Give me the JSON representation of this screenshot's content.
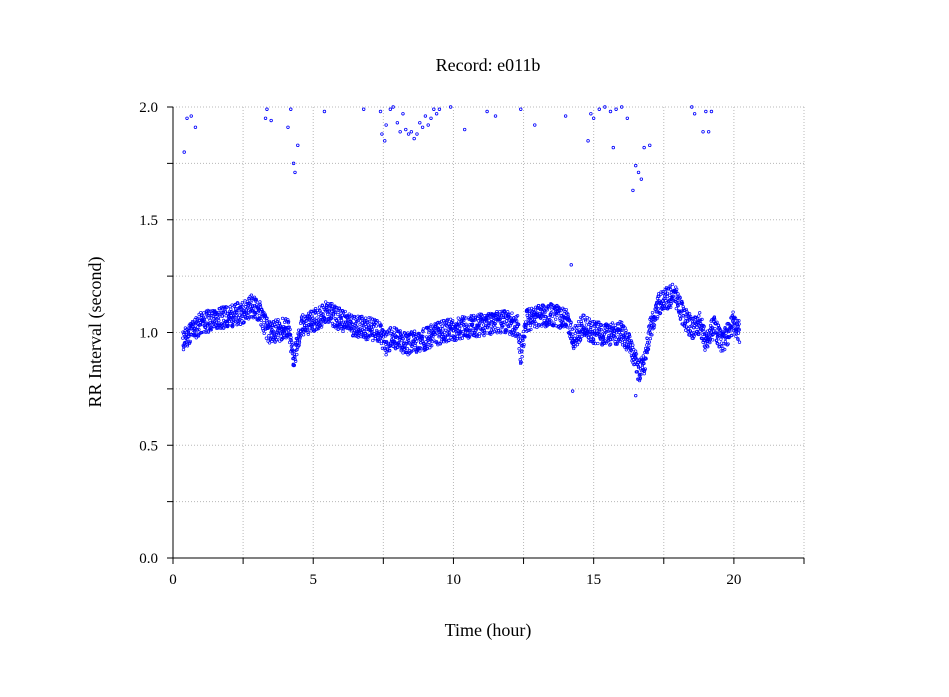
{
  "chart_data": {
    "type": "scatter",
    "title": "Record:  e011b",
    "xlabel": "Time (hour)",
    "ylabel": "RR Interval (second)",
    "xlim": [
      0,
      22.5
    ],
    "ylim": [
      0,
      2.0
    ],
    "xticks": [
      0,
      5,
      10,
      15,
      20
    ],
    "xtick_labels": [
      "0",
      "5",
      "10",
      "15",
      "20"
    ],
    "xminor": [
      2.5,
      7.5,
      12.5,
      17.5,
      22.5
    ],
    "yticks": [
      0.0,
      0.5,
      1.0,
      1.5,
      2.0
    ],
    "ytick_labels": [
      "0.0",
      "0.5",
      "1.0",
      "1.5",
      "2.0"
    ],
    "yminor": [
      0.25,
      0.75,
      1.25,
      1.75
    ],
    "grid": true,
    "marker_color": "#0000ff",
    "baseline_trend": {
      "x": [
        0.35,
        0.6,
        1.0,
        1.5,
        2.0,
        2.5,
        2.8,
        3.1,
        3.4,
        3.8,
        4.1,
        4.3,
        4.6,
        5.0,
        5.5,
        5.8,
        6.2,
        6.8,
        7.3,
        7.6,
        7.8,
        8.3,
        8.8,
        9.3,
        9.8,
        10.3,
        10.8,
        11.3,
        11.8,
        12.3,
        12.4,
        12.6,
        13.0,
        13.5,
        14.0,
        14.3,
        14.6,
        15.0,
        15.5,
        16.0,
        16.3,
        16.6,
        16.8,
        17.0,
        17.3,
        17.6,
        17.9,
        18.2,
        18.5,
        18.8,
        19.0,
        19.3,
        19.6,
        20.0,
        20.2
      ],
      "y": [
        0.96,
        1.0,
        1.04,
        1.06,
        1.07,
        1.09,
        1.12,
        1.09,
        1.0,
        1.01,
        1.02,
        0.88,
        1.03,
        1.05,
        1.09,
        1.07,
        1.04,
        1.02,
        1.01,
        0.95,
        0.98,
        0.95,
        0.96,
        0.99,
        1.01,
        1.02,
        1.03,
        1.04,
        1.05,
        1.03,
        0.9,
        1.05,
        1.07,
        1.08,
        1.06,
        0.97,
        1.03,
        1.0,
        0.99,
        1.0,
        0.94,
        0.83,
        0.85,
        1.01,
        1.12,
        1.15,
        1.17,
        1.07,
        1.02,
        1.04,
        0.96,
        1.03,
        0.95,
        1.05,
        1.0
      ],
      "spread": 0.05
    },
    "outliers": [
      {
        "x": 0.4,
        "y": 1.8
      },
      {
        "x": 0.5,
        "y": 1.95
      },
      {
        "x": 0.65,
        "y": 1.96
      },
      {
        "x": 0.8,
        "y": 1.91
      },
      {
        "x": 3.3,
        "y": 1.95
      },
      {
        "x": 3.35,
        "y": 1.99
      },
      {
        "x": 3.5,
        "y": 1.94
      },
      {
        "x": 4.1,
        "y": 1.91
      },
      {
        "x": 4.2,
        "y": 1.99
      },
      {
        "x": 4.3,
        "y": 1.75
      },
      {
        "x": 4.35,
        "y": 1.71
      },
      {
        "x": 4.45,
        "y": 1.83
      },
      {
        "x": 5.4,
        "y": 1.98
      },
      {
        "x": 6.8,
        "y": 1.99
      },
      {
        "x": 7.4,
        "y": 1.98
      },
      {
        "x": 7.45,
        "y": 1.88
      },
      {
        "x": 7.55,
        "y": 1.85
      },
      {
        "x": 7.6,
        "y": 1.92
      },
      {
        "x": 7.75,
        "y": 1.99
      },
      {
        "x": 7.85,
        "y": 2.0
      },
      {
        "x": 8.0,
        "y": 1.93
      },
      {
        "x": 8.1,
        "y": 1.89
      },
      {
        "x": 8.2,
        "y": 1.97
      },
      {
        "x": 8.3,
        "y": 1.9
      },
      {
        "x": 8.4,
        "y": 1.88
      },
      {
        "x": 8.5,
        "y": 1.89
      },
      {
        "x": 8.6,
        "y": 1.86
      },
      {
        "x": 8.7,
        "y": 1.88
      },
      {
        "x": 8.8,
        "y": 1.93
      },
      {
        "x": 8.9,
        "y": 1.91
      },
      {
        "x": 9.0,
        "y": 1.96
      },
      {
        "x": 9.1,
        "y": 1.92
      },
      {
        "x": 9.2,
        "y": 1.95
      },
      {
        "x": 9.3,
        "y": 1.99
      },
      {
        "x": 9.4,
        "y": 1.97
      },
      {
        "x": 9.5,
        "y": 1.99
      },
      {
        "x": 9.9,
        "y": 2.0
      },
      {
        "x": 10.4,
        "y": 1.9
      },
      {
        "x": 11.2,
        "y": 1.98
      },
      {
        "x": 11.5,
        "y": 1.96
      },
      {
        "x": 12.4,
        "y": 1.99
      },
      {
        "x": 12.9,
        "y": 1.92
      },
      {
        "x": 14.0,
        "y": 1.96
      },
      {
        "x": 14.2,
        "y": 1.3
      },
      {
        "x": 14.25,
        "y": 0.74
      },
      {
        "x": 14.8,
        "y": 1.85
      },
      {
        "x": 14.9,
        "y": 1.97
      },
      {
        "x": 15.0,
        "y": 1.95
      },
      {
        "x": 15.2,
        "y": 1.99
      },
      {
        "x": 15.4,
        "y": 2.0
      },
      {
        "x": 15.6,
        "y": 1.98
      },
      {
        "x": 15.7,
        "y": 1.82
      },
      {
        "x": 15.8,
        "y": 1.99
      },
      {
        "x": 16.0,
        "y": 2.0
      },
      {
        "x": 16.2,
        "y": 1.95
      },
      {
        "x": 16.4,
        "y": 1.63
      },
      {
        "x": 16.5,
        "y": 1.74
      },
      {
        "x": 16.6,
        "y": 1.71
      },
      {
        "x": 16.7,
        "y": 1.68
      },
      {
        "x": 16.8,
        "y": 1.82
      },
      {
        "x": 17.0,
        "y": 1.83
      },
      {
        "x": 16.5,
        "y": 0.72
      },
      {
        "x": 18.5,
        "y": 2.0
      },
      {
        "x": 18.6,
        "y": 1.97
      },
      {
        "x": 18.9,
        "y": 1.89
      },
      {
        "x": 19.0,
        "y": 1.98
      },
      {
        "x": 19.1,
        "y": 1.89
      },
      {
        "x": 19.2,
        "y": 1.98
      }
    ]
  }
}
